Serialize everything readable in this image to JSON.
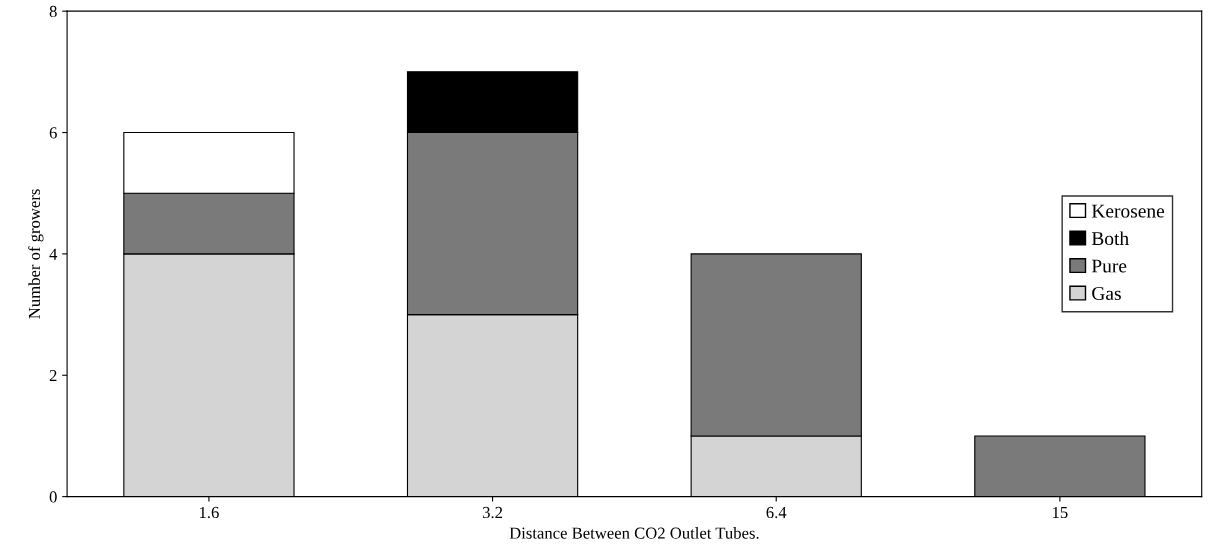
{
  "chart_data": {
    "type": "bar",
    "stacked": true,
    "xlabel": "Distance Between CO2 Outlet Tubes.",
    "ylabel": "Number of growers",
    "categories": [
      "1.6",
      "3.2",
      "6.4",
      "15"
    ],
    "series": [
      {
        "name": "Gas",
        "color": "#d4d4d4",
        "values": [
          4,
          3,
          1,
          0
        ]
      },
      {
        "name": "Pure",
        "color": "#7a7a7a",
        "values": [
          1,
          3,
          3,
          1
        ]
      },
      {
        "name": "Both",
        "color": "#000000",
        "values": [
          0,
          1,
          0,
          0
        ]
      },
      {
        "name": "Kerosene",
        "color": "#ffffff",
        "values": [
          1,
          0,
          0,
          0
        ]
      }
    ],
    "ylim": [
      0,
      8
    ],
    "yticks": [
      0,
      2,
      4,
      6,
      8
    ],
    "grid": false,
    "legend": "right"
  }
}
